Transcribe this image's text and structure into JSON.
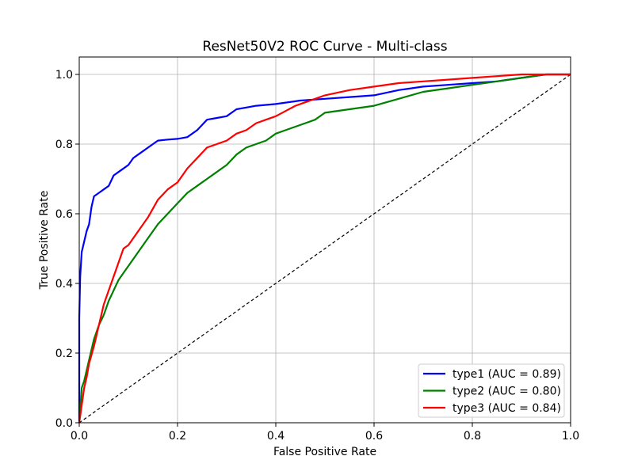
{
  "chart_data": {
    "type": "line",
    "title": "ResNet50V2 ROC Curve - Multi-class",
    "xlabel": "False Positive Rate",
    "ylabel": "True Positive Rate",
    "xlim": [
      0.0,
      1.0
    ],
    "ylim": [
      0.0,
      1.05
    ],
    "xticks": [
      "0.0",
      "0.2",
      "0.4",
      "0.6",
      "0.8",
      "1.0"
    ],
    "yticks": [
      "0.0",
      "0.2",
      "0.4",
      "0.6",
      "0.8",
      "1.0"
    ],
    "grid": true,
    "legend_position": "lower-right",
    "series": [
      {
        "name": "type1 (AUC = 0.89)",
        "color": "#0000ff",
        "points": [
          [
            0.0,
            0.0
          ],
          [
            0.0,
            0.3
          ],
          [
            0.002,
            0.42
          ],
          [
            0.005,
            0.49
          ],
          [
            0.01,
            0.52
          ],
          [
            0.015,
            0.55
          ],
          [
            0.02,
            0.57
          ],
          [
            0.025,
            0.62
          ],
          [
            0.03,
            0.65
          ],
          [
            0.04,
            0.66
          ],
          [
            0.05,
            0.67
          ],
          [
            0.06,
            0.68
          ],
          [
            0.07,
            0.71
          ],
          [
            0.08,
            0.72
          ],
          [
            0.09,
            0.73
          ],
          [
            0.1,
            0.74
          ],
          [
            0.11,
            0.76
          ],
          [
            0.12,
            0.77
          ],
          [
            0.13,
            0.78
          ],
          [
            0.14,
            0.79
          ],
          [
            0.15,
            0.8
          ],
          [
            0.16,
            0.81
          ],
          [
            0.18,
            0.813
          ],
          [
            0.2,
            0.815
          ],
          [
            0.22,
            0.82
          ],
          [
            0.24,
            0.84
          ],
          [
            0.26,
            0.87
          ],
          [
            0.28,
            0.875
          ],
          [
            0.3,
            0.88
          ],
          [
            0.32,
            0.9
          ],
          [
            0.34,
            0.905
          ],
          [
            0.36,
            0.91
          ],
          [
            0.4,
            0.915
          ],
          [
            0.45,
            0.925
          ],
          [
            0.5,
            0.93
          ],
          [
            0.55,
            0.935
          ],
          [
            0.6,
            0.94
          ],
          [
            0.65,
            0.955
          ],
          [
            0.7,
            0.965
          ],
          [
            0.75,
            0.97
          ],
          [
            0.8,
            0.975
          ],
          [
            0.85,
            0.98
          ],
          [
            0.9,
            0.99
          ],
          [
            0.95,
            1.0
          ],
          [
            1.0,
            1.0
          ]
        ]
      },
      {
        "name": "type2 (AUC = 0.80)",
        "color": "#008000",
        "points": [
          [
            0.0,
            0.0
          ],
          [
            0.005,
            0.1
          ],
          [
            0.01,
            0.12
          ],
          [
            0.015,
            0.15
          ],
          [
            0.02,
            0.18
          ],
          [
            0.03,
            0.24
          ],
          [
            0.04,
            0.28
          ],
          [
            0.05,
            0.31
          ],
          [
            0.06,
            0.35
          ],
          [
            0.07,
            0.38
          ],
          [
            0.08,
            0.41
          ],
          [
            0.09,
            0.43
          ],
          [
            0.1,
            0.45
          ],
          [
            0.12,
            0.49
          ],
          [
            0.14,
            0.53
          ],
          [
            0.16,
            0.57
          ],
          [
            0.18,
            0.6
          ],
          [
            0.2,
            0.63
          ],
          [
            0.22,
            0.66
          ],
          [
            0.24,
            0.68
          ],
          [
            0.26,
            0.7
          ],
          [
            0.28,
            0.72
          ],
          [
            0.3,
            0.74
          ],
          [
            0.32,
            0.77
          ],
          [
            0.34,
            0.79
          ],
          [
            0.36,
            0.8
          ],
          [
            0.38,
            0.81
          ],
          [
            0.4,
            0.83
          ],
          [
            0.42,
            0.84
          ],
          [
            0.44,
            0.85
          ],
          [
            0.46,
            0.86
          ],
          [
            0.48,
            0.87
          ],
          [
            0.5,
            0.89
          ],
          [
            0.55,
            0.9
          ],
          [
            0.6,
            0.91
          ],
          [
            0.65,
            0.93
          ],
          [
            0.7,
            0.95
          ],
          [
            0.75,
            0.96
          ],
          [
            0.8,
            0.97
          ],
          [
            0.85,
            0.98
          ],
          [
            0.9,
            0.99
          ],
          [
            0.95,
            1.0
          ],
          [
            1.0,
            1.0
          ]
        ]
      },
      {
        "name": "type3 (AUC = 0.84)",
        "color": "#ff0000",
        "points": [
          [
            0.0,
            0.0
          ],
          [
            0.005,
            0.05
          ],
          [
            0.01,
            0.1
          ],
          [
            0.015,
            0.13
          ],
          [
            0.02,
            0.17
          ],
          [
            0.03,
            0.22
          ],
          [
            0.04,
            0.28
          ],
          [
            0.05,
            0.34
          ],
          [
            0.06,
            0.38
          ],
          [
            0.07,
            0.42
          ],
          [
            0.08,
            0.46
          ],
          [
            0.09,
            0.5
          ],
          [
            0.1,
            0.51
          ],
          [
            0.12,
            0.55
          ],
          [
            0.14,
            0.59
          ],
          [
            0.16,
            0.64
          ],
          [
            0.18,
            0.67
          ],
          [
            0.2,
            0.69
          ],
          [
            0.22,
            0.73
          ],
          [
            0.24,
            0.76
          ],
          [
            0.26,
            0.79
          ],
          [
            0.28,
            0.8
          ],
          [
            0.3,
            0.81
          ],
          [
            0.32,
            0.83
          ],
          [
            0.34,
            0.84
          ],
          [
            0.36,
            0.86
          ],
          [
            0.38,
            0.87
          ],
          [
            0.4,
            0.88
          ],
          [
            0.42,
            0.895
          ],
          [
            0.44,
            0.91
          ],
          [
            0.46,
            0.92
          ],
          [
            0.48,
            0.93
          ],
          [
            0.5,
            0.94
          ],
          [
            0.55,
            0.955
          ],
          [
            0.6,
            0.965
          ],
          [
            0.65,
            0.975
          ],
          [
            0.7,
            0.98
          ],
          [
            0.75,
            0.985
          ],
          [
            0.8,
            0.99
          ],
          [
            0.85,
            0.995
          ],
          [
            0.9,
            1.0
          ],
          [
            1.0,
            1.0
          ]
        ]
      }
    ],
    "reference_line": {
      "color": "#000000",
      "style": "dashed",
      "points": [
        [
          0.0,
          0.0
        ],
        [
          1.0,
          1.0
        ]
      ]
    }
  }
}
